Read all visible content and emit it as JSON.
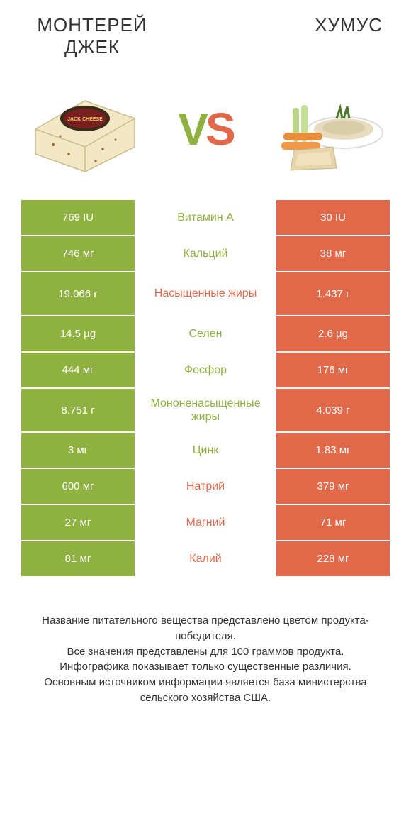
{
  "header": {
    "left_title": "МОНТЕРЕЙ ДЖЕК",
    "right_title": "ХУМУС"
  },
  "vs": {
    "v": "V",
    "s": "S"
  },
  "colors": {
    "green": "#8fb140",
    "orange": "#e1694a",
    "background": "#ffffff",
    "text": "#333333"
  },
  "rows": [
    {
      "left": "769 IU",
      "label": "Витамин A",
      "right": "30 IU",
      "winner": "left",
      "tall": false
    },
    {
      "left": "746 мг",
      "label": "Кальций",
      "right": "38 мг",
      "winner": "left",
      "tall": false
    },
    {
      "left": "19.066 г",
      "label": "Насыщенные жиры",
      "right": "1.437 г",
      "winner": "right",
      "tall": true
    },
    {
      "left": "14.5 µg",
      "label": "Селен",
      "right": "2.6 µg",
      "winner": "left",
      "tall": false
    },
    {
      "left": "444 мг",
      "label": "Фосфор",
      "right": "176 мг",
      "winner": "left",
      "tall": false
    },
    {
      "left": "8.751 г",
      "label": "Мононенасыщенные жиры",
      "right": "4.039 г",
      "winner": "left",
      "tall": true
    },
    {
      "left": "3 мг",
      "label": "Цинк",
      "right": "1.83 мг",
      "winner": "left",
      "tall": false
    },
    {
      "left": "600 мг",
      "label": "Натрий",
      "right": "379 мг",
      "winner": "right",
      "tall": false
    },
    {
      "left": "27 мг",
      "label": "Магний",
      "right": "71 мг",
      "winner": "right",
      "tall": false
    },
    {
      "left": "81 мг",
      "label": "Калий",
      "right": "228 мг",
      "winner": "right",
      "tall": false
    }
  ],
  "footer": {
    "line1": "Название питательного вещества представлено цветом продукта-победителя.",
    "line2": "Все значения представлены для 100 граммов продукта.",
    "line3": "Инфографика показывает только существенные различия.",
    "line4": "Основным источником информации является база министерства сельского хозяйства США."
  }
}
